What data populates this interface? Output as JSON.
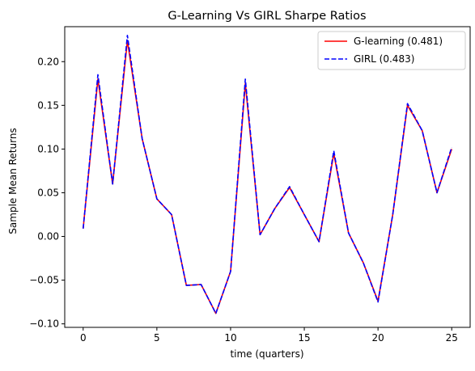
{
  "chart_data": {
    "type": "line",
    "title": "G-Learning Vs GIRL Sharpe Ratios",
    "xlabel": "time (quarters)",
    "ylabel": "Sample Mean Returns",
    "xlim": [
      -1.25,
      26.25
    ],
    "ylim": [
      -0.104,
      0.24
    ],
    "xticks": [
      0,
      5,
      10,
      15,
      20,
      25
    ],
    "yticks": [
      -0.1,
      -0.05,
      0.0,
      0.05,
      0.1,
      0.15,
      0.2
    ],
    "xtick_labels": [
      "0",
      "5",
      "10",
      "15",
      "20",
      "25"
    ],
    "ytick_labels": [
      "−0.10",
      "−0.05",
      "0.00",
      "0.05",
      "0.10",
      "0.15",
      "0.20"
    ],
    "grid": false,
    "legend_position": "top-right",
    "x": [
      0,
      1,
      2,
      3,
      4,
      5,
      6,
      7,
      8,
      9,
      10,
      11,
      12,
      13,
      14,
      15,
      16,
      17,
      18,
      19,
      20,
      21,
      22,
      23,
      24,
      25
    ],
    "series": [
      {
        "name": "G-learning (0.481)",
        "color": "#ff0000",
        "dash": "solid",
        "values": [
          0.009,
          0.18,
          0.06,
          0.224,
          0.112,
          0.043,
          0.025,
          -0.056,
          -0.055,
          -0.088,
          -0.04,
          0.175,
          0.002,
          0.032,
          0.056,
          0.025,
          -0.006,
          0.095,
          0.004,
          -0.03,
          -0.074,
          0.025,
          0.15,
          0.121,
          0.05,
          0.1
        ]
      },
      {
        "name": "GIRL (0.483)",
        "color": "#0000ff",
        "dash": "dashed",
        "values": [
          0.009,
          0.185,
          0.06,
          0.23,
          0.112,
          0.043,
          0.025,
          -0.056,
          -0.055,
          -0.088,
          -0.04,
          0.18,
          0.002,
          0.032,
          0.057,
          0.025,
          -0.006,
          0.098,
          0.004,
          -0.03,
          -0.075,
          0.025,
          0.152,
          0.121,
          0.05,
          0.102
        ]
      }
    ]
  }
}
